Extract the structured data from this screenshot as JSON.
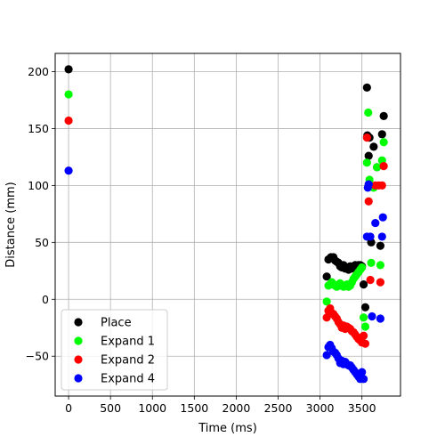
{
  "chart_data": {
    "type": "scatter",
    "title": "",
    "xlabel": "Time (ms)",
    "ylabel": "Distance (mm)",
    "xlim": [
      -160,
      3960
    ],
    "ylim": [
      -85,
      216
    ],
    "xticks": [
      0,
      500,
      1000,
      1500,
      2000,
      2500,
      3000,
      3500
    ],
    "yticks": [
      -50,
      0,
      50,
      100,
      150,
      200
    ],
    "grid": true,
    "legend_position": "lower-left",
    "series": [
      {
        "name": "Place",
        "color": "#000000",
        "points": [
          [
            0,
            202
          ],
          [
            3080,
            20
          ],
          [
            3100,
            35
          ],
          [
            3130,
            37
          ],
          [
            3160,
            37
          ],
          [
            3180,
            34
          ],
          [
            3200,
            33
          ],
          [
            3220,
            32
          ],
          [
            3240,
            29
          ],
          [
            3260,
            28
          ],
          [
            3280,
            30
          ],
          [
            3300,
            27
          ],
          [
            3320,
            28
          ],
          [
            3340,
            26
          ],
          [
            3360,
            29
          ],
          [
            3380,
            27
          ],
          [
            3400,
            29
          ],
          [
            3420,
            30
          ],
          [
            3440,
            28
          ],
          [
            3460,
            30
          ],
          [
            3480,
            30
          ],
          [
            3500,
            29
          ],
          [
            3520,
            13
          ],
          [
            3540,
            -7
          ],
          [
            3560,
            186
          ],
          [
            3565,
            144
          ],
          [
            3580,
            126
          ],
          [
            3590,
            142
          ],
          [
            3610,
            50
          ],
          [
            3640,
            134
          ],
          [
            3680,
            116
          ],
          [
            3720,
            47
          ],
          [
            3740,
            145
          ],
          [
            3760,
            161
          ]
        ]
      },
      {
        "name": "Expand 1",
        "color": "#00ff00",
        "points": [
          [
            0,
            180
          ],
          [
            3080,
            -2
          ],
          [
            3100,
            12
          ],
          [
            3120,
            13
          ],
          [
            3140,
            15
          ],
          [
            3160,
            13
          ],
          [
            3180,
            12
          ],
          [
            3200,
            11
          ],
          [
            3220,
            13
          ],
          [
            3240,
            14
          ],
          [
            3260,
            12
          ],
          [
            3280,
            11
          ],
          [
            3300,
            12
          ],
          [
            3320,
            13
          ],
          [
            3340,
            11
          ],
          [
            3360,
            12
          ],
          [
            3380,
            15
          ],
          [
            3400,
            18
          ],
          [
            3420,
            20
          ],
          [
            3440,
            22
          ],
          [
            3460,
            24
          ],
          [
            3480,
            26
          ],
          [
            3500,
            28
          ],
          [
            3520,
            -16
          ],
          [
            3540,
            -24
          ],
          [
            3560,
            120
          ],
          [
            3575,
            164
          ],
          [
            3590,
            105
          ],
          [
            3610,
            32
          ],
          [
            3640,
            98
          ],
          [
            3680,
            116
          ],
          [
            3720,
            30
          ],
          [
            3740,
            122
          ],
          [
            3760,
            138
          ]
        ]
      },
      {
        "name": "Expand 2",
        "color": "#ff0000",
        "points": [
          [
            0,
            157
          ],
          [
            3080,
            -16
          ],
          [
            3100,
            -10
          ],
          [
            3120,
            -8
          ],
          [
            3140,
            -12
          ],
          [
            3160,
            -13
          ],
          [
            3180,
            -15
          ],
          [
            3200,
            -17
          ],
          [
            3220,
            -20
          ],
          [
            3240,
            -22
          ],
          [
            3260,
            -25
          ],
          [
            3280,
            -23
          ],
          [
            3300,
            -26
          ],
          [
            3320,
            -24
          ],
          [
            3340,
            -25
          ],
          [
            3360,
            -26
          ],
          [
            3380,
            -28
          ],
          [
            3400,
            -29
          ],
          [
            3420,
            -31
          ],
          [
            3440,
            -33
          ],
          [
            3460,
            -35
          ],
          [
            3480,
            -36
          ],
          [
            3500,
            -38
          ],
          [
            3520,
            -32
          ],
          [
            3540,
            -39
          ],
          [
            3560,
            142
          ],
          [
            3580,
            86
          ],
          [
            3600,
            17
          ],
          [
            3660,
            100
          ],
          [
            3700,
            100
          ],
          [
            3720,
            15
          ],
          [
            3740,
            100
          ],
          [
            3760,
            117
          ]
        ]
      },
      {
        "name": "Expand 4",
        "color": "#0000ff",
        "points": [
          [
            0,
            113
          ],
          [
            3080,
            -49
          ],
          [
            3100,
            -42
          ],
          [
            3120,
            -40
          ],
          [
            3140,
            -43
          ],
          [
            3160,
            -46
          ],
          [
            3180,
            -47
          ],
          [
            3200,
            -49
          ],
          [
            3220,
            -52
          ],
          [
            3240,
            -56
          ],
          [
            3260,
            -54
          ],
          [
            3280,
            -57
          ],
          [
            3300,
            -55
          ],
          [
            3320,
            -57
          ],
          [
            3340,
            -58
          ],
          [
            3360,
            -58
          ],
          [
            3380,
            -60
          ],
          [
            3400,
            -62
          ],
          [
            3420,
            -64
          ],
          [
            3440,
            -66
          ],
          [
            3460,
            -68
          ],
          [
            3480,
            -70
          ],
          [
            3500,
            -64
          ],
          [
            3520,
            -70
          ],
          [
            3560,
            55
          ],
          [
            3570,
            98
          ],
          [
            3580,
            101
          ],
          [
            3600,
            55
          ],
          [
            3620,
            -15
          ],
          [
            3660,
            67
          ],
          [
            3720,
            -17
          ],
          [
            3740,
            55
          ],
          [
            3750,
            72
          ]
        ]
      }
    ]
  }
}
